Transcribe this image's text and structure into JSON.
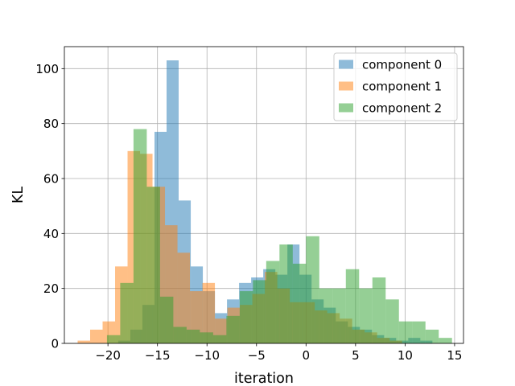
{
  "chart_data": {
    "type": "histogram",
    "xlabel": "iteration",
    "ylabel": "KL",
    "xlim": [
      -24.4,
      15.9
    ],
    "ylim": [
      0,
      108
    ],
    "xticks": [
      -20,
      -15,
      -10,
      -5,
      0,
      5,
      10,
      15
    ],
    "xtick_labels": [
      "−20",
      "−15",
      "−10",
      "−5",
      "0",
      "5",
      "10",
      "15"
    ],
    "yticks": [
      0,
      20,
      40,
      60,
      80,
      100
    ],
    "ytick_labels": [
      "0",
      "20",
      "40",
      "60",
      "80",
      "100"
    ],
    "grid": true,
    "legend_position": "top-right",
    "alpha": 0.5,
    "series": [
      {
        "name": "component 0",
        "color": "#1f77b4",
        "bins": [
          {
            "x0": -18.96,
            "x1": -17.74,
            "count": 1
          },
          {
            "x0": -17.74,
            "x1": -16.52,
            "count": 5
          },
          {
            "x0": -16.52,
            "x1": -15.3,
            "count": 14
          },
          {
            "x0": -15.3,
            "x1": -14.08,
            "count": 77
          },
          {
            "x0": -14.08,
            "x1": -12.86,
            "count": 103
          },
          {
            "x0": -12.86,
            "x1": -11.64,
            "count": 52
          },
          {
            "x0": -11.64,
            "x1": -10.42,
            "count": 28
          },
          {
            "x0": -10.42,
            "x1": -9.2,
            "count": 19
          },
          {
            "x0": -9.2,
            "x1": -7.98,
            "count": 11
          },
          {
            "x0": -7.98,
            "x1": -6.76,
            "count": 16
          },
          {
            "x0": -6.76,
            "x1": -5.54,
            "count": 22
          },
          {
            "x0": -5.54,
            "x1": -4.32,
            "count": 24
          },
          {
            "x0": -4.32,
            "x1": -3.1,
            "count": 27
          },
          {
            "x0": -3.1,
            "x1": -1.88,
            "count": 25
          },
          {
            "x0": -1.88,
            "x1": -0.66,
            "count": 36
          },
          {
            "x0": -0.66,
            "x1": 0.56,
            "count": 25
          },
          {
            "x0": 0.56,
            "x1": 1.78,
            "count": 16
          },
          {
            "x0": 1.78,
            "x1": 3.0,
            "count": 13
          },
          {
            "x0": 3.0,
            "x1": 4.22,
            "count": 8
          },
          {
            "x0": 4.22,
            "x1": 5.44,
            "count": 6
          },
          {
            "x0": 5.44,
            "x1": 6.66,
            "count": 5
          },
          {
            "x0": 6.66,
            "x1": 7.88,
            "count": 3
          },
          {
            "x0": 7.88,
            "x1": 9.1,
            "count": 2
          },
          {
            "x0": 9.1,
            "x1": 10.32,
            "count": 1
          },
          {
            "x0": 10.32,
            "x1": 11.54,
            "count": 2
          },
          {
            "x0": 11.54,
            "x1": 12.76,
            "count": 1
          }
        ]
      },
      {
        "name": "component 1",
        "color": "#ff7f0e",
        "bins": [
          {
            "x0": -23.06,
            "x1": -21.8,
            "count": 1
          },
          {
            "x0": -21.8,
            "x1": -20.54,
            "count": 5
          },
          {
            "x0": -20.54,
            "x1": -19.28,
            "count": 8
          },
          {
            "x0": -19.28,
            "x1": -18.02,
            "count": 28
          },
          {
            "x0": -18.02,
            "x1": -16.76,
            "count": 70
          },
          {
            "x0": -16.76,
            "x1": -15.5,
            "count": 69
          },
          {
            "x0": -15.5,
            "x1": -14.24,
            "count": 57
          },
          {
            "x0": -14.24,
            "x1": -12.98,
            "count": 43
          },
          {
            "x0": -12.98,
            "x1": -11.72,
            "count": 33
          },
          {
            "x0": -11.72,
            "x1": -10.46,
            "count": 19
          },
          {
            "x0": -10.46,
            "x1": -9.2,
            "count": 22
          },
          {
            "x0": -9.2,
            "x1": -7.94,
            "count": 9
          },
          {
            "x0": -7.94,
            "x1": -6.68,
            "count": 13
          },
          {
            "x0": -6.68,
            "x1": -5.42,
            "count": 14
          },
          {
            "x0": -5.42,
            "x1": -4.16,
            "count": 18
          },
          {
            "x0": -4.16,
            "x1": -2.9,
            "count": 26
          },
          {
            "x0": -2.9,
            "x1": -1.64,
            "count": 20
          },
          {
            "x0": -1.64,
            "x1": -0.38,
            "count": 15
          },
          {
            "x0": -0.38,
            "x1": 0.88,
            "count": 15
          },
          {
            "x0": 0.88,
            "x1": 2.14,
            "count": 12
          },
          {
            "x0": 2.14,
            "x1": 3.4,
            "count": 11
          },
          {
            "x0": 3.4,
            "x1": 4.66,
            "count": 9
          },
          {
            "x0": 4.66,
            "x1": 5.92,
            "count": 5
          },
          {
            "x0": 5.92,
            "x1": 7.18,
            "count": 4
          },
          {
            "x0": 7.18,
            "x1": 8.44,
            "count": 2
          },
          {
            "x0": 8.44,
            "x1": 9.7,
            "count": 1
          }
        ]
      },
      {
        "name": "component 2",
        "color": "#2ca02c",
        "bins": [
          {
            "x0": -20.1,
            "x1": -18.76,
            "count": 3
          },
          {
            "x0": -18.76,
            "x1": -17.42,
            "count": 22
          },
          {
            "x0": -17.42,
            "x1": -16.08,
            "count": 78
          },
          {
            "x0": -16.08,
            "x1": -14.74,
            "count": 57
          },
          {
            "x0": -14.74,
            "x1": -13.4,
            "count": 17
          },
          {
            "x0": -13.4,
            "x1": -12.06,
            "count": 6
          },
          {
            "x0": -12.06,
            "x1": -10.72,
            "count": 5
          },
          {
            "x0": -10.72,
            "x1": -9.38,
            "count": 4
          },
          {
            "x0": -9.38,
            "x1": -8.04,
            "count": 3
          },
          {
            "x0": -8.04,
            "x1": -6.7,
            "count": 10
          },
          {
            "x0": -6.7,
            "x1": -5.36,
            "count": 19
          },
          {
            "x0": -5.36,
            "x1": -4.02,
            "count": 23
          },
          {
            "x0": -4.02,
            "x1": -2.68,
            "count": 30
          },
          {
            "x0": -2.68,
            "x1": -1.34,
            "count": 36
          },
          {
            "x0": -1.34,
            "x1": 0.0,
            "count": 29
          },
          {
            "x0": 0.0,
            "x1": 1.34,
            "count": 39
          },
          {
            "x0": 1.34,
            "x1": 2.68,
            "count": 20
          },
          {
            "x0": 2.68,
            "x1": 4.02,
            "count": 20
          },
          {
            "x0": 4.02,
            "x1": 5.36,
            "count": 27
          },
          {
            "x0": 5.36,
            "x1": 6.7,
            "count": 20
          },
          {
            "x0": 6.7,
            "x1": 8.04,
            "count": 24
          },
          {
            "x0": 8.04,
            "x1": 9.38,
            "count": 16
          },
          {
            "x0": 9.38,
            "x1": 10.72,
            "count": 8
          },
          {
            "x0": 10.72,
            "x1": 12.06,
            "count": 8
          },
          {
            "x0": 12.06,
            "x1": 13.4,
            "count": 5
          },
          {
            "x0": 13.4,
            "x1": 14.74,
            "count": 2
          }
        ]
      }
    ]
  }
}
